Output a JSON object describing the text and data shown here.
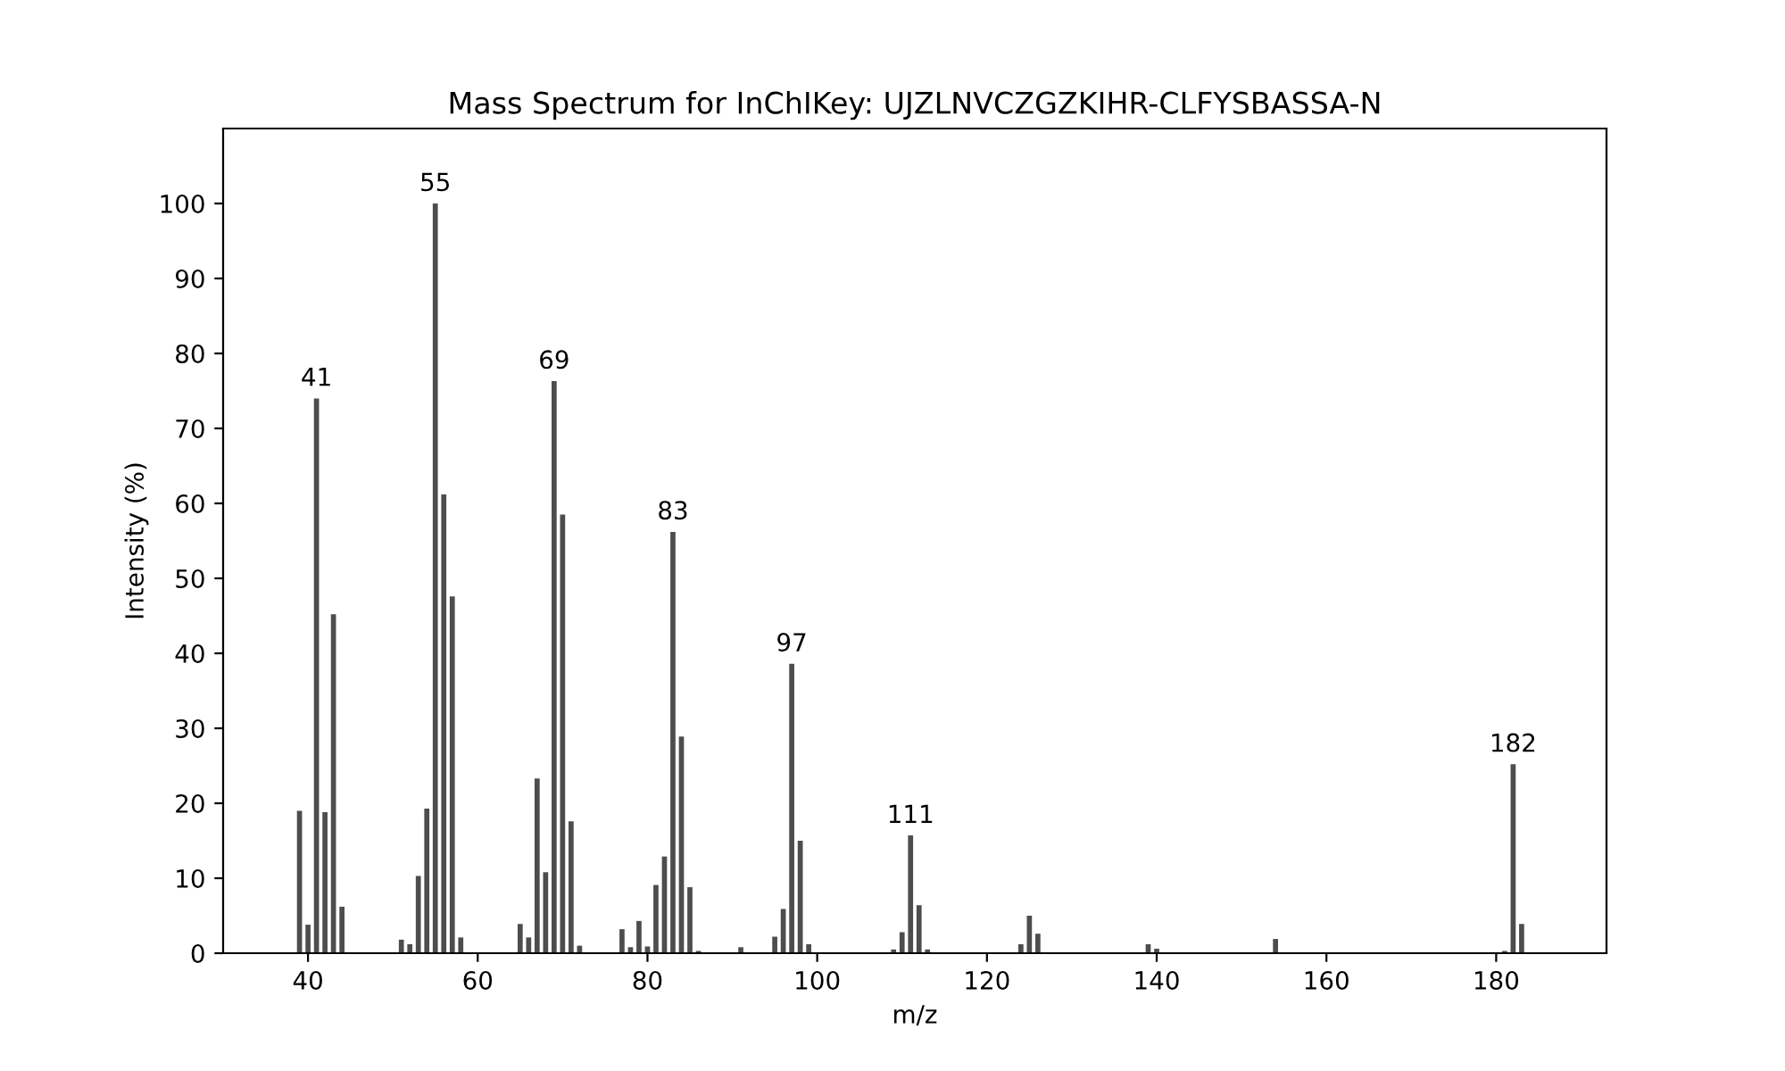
{
  "chart_data": {
    "type": "bar",
    "title": "Mass Spectrum for InChIKey: UJZLNVCZGZKIHR-CLFYSBASSA-N",
    "xlabel": "m/z",
    "ylabel": "Intensity (%)",
    "x": [
      39,
      40,
      41,
      42,
      43,
      44,
      51,
      52,
      53,
      54,
      55,
      56,
      57,
      58,
      65,
      66,
      67,
      68,
      69,
      70,
      71,
      72,
      77,
      78,
      79,
      80,
      81,
      82,
      83,
      84,
      85,
      86,
      91,
      95,
      96,
      97,
      98,
      99,
      109,
      110,
      111,
      112,
      113,
      124,
      125,
      126,
      139,
      140,
      154,
      181,
      182,
      183
    ],
    "values": [
      19,
      3.8,
      74,
      18.8,
      45.2,
      6.2,
      1.8,
      1.2,
      10.3,
      19.3,
      100,
      61.2,
      47.6,
      2.1,
      3.9,
      2.1,
      23.3,
      10.8,
      76.3,
      58.5,
      17.6,
      1,
      3.2,
      0.8,
      4.3,
      0.9,
      9.1,
      12.9,
      56.2,
      28.9,
      8.8,
      0.3,
      0.8,
      2.2,
      5.9,
      38.6,
      15,
      1.2,
      0.5,
      2.8,
      15.7,
      6.4,
      0.5,
      1.2,
      5,
      2.6,
      1.2,
      0.6,
      1.9,
      0.3,
      25.2,
      3.9
    ],
    "color": "#4d4d4d",
    "xlim": [
      30,
      193
    ],
    "ylim": [
      0,
      110
    ],
    "xticks": [
      40,
      60,
      80,
      100,
      120,
      140,
      160,
      180
    ],
    "yticks": [
      0,
      10,
      20,
      30,
      40,
      50,
      60,
      70,
      80,
      90,
      100
    ],
    "grid": false,
    "annotations": [
      {
        "text": "41",
        "x": 41,
        "y": 74
      },
      {
        "text": "55",
        "x": 55,
        "y": 100
      },
      {
        "text": "69",
        "x": 69,
        "y": 76.3
      },
      {
        "text": "83",
        "x": 83,
        "y": 56.2
      },
      {
        "text": "97",
        "x": 97,
        "y": 38.6
      },
      {
        "text": "111",
        "x": 111,
        "y": 15.7
      },
      {
        "text": "182",
        "x": 182,
        "y": 25.2
      }
    ]
  }
}
